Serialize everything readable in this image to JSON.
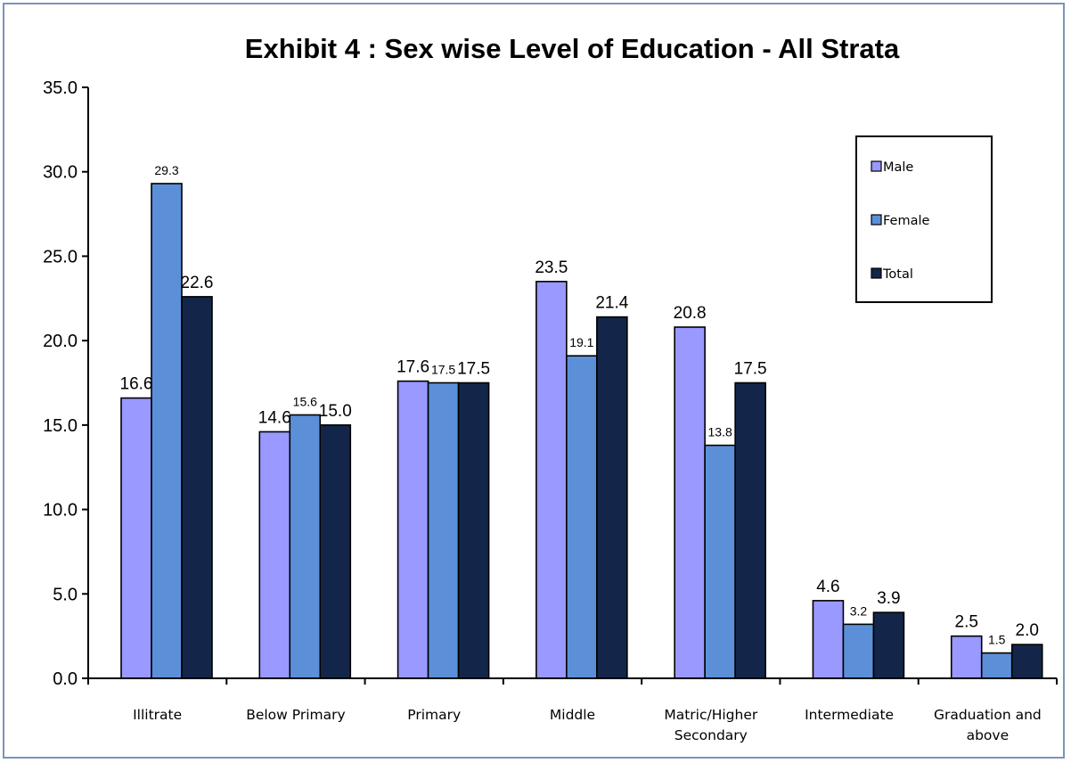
{
  "chart_data": {
    "type": "bar",
    "title": "Exhibit 4 : Sex wise Level of Education  - All Strata",
    "xlabel": "",
    "ylabel": "",
    "ylim": [
      0,
      35
    ],
    "yticks": [
      "0.0",
      "5.0",
      "10.0",
      "15.0",
      "20.0",
      "25.0",
      "30.0",
      "35.0"
    ],
    "categories": [
      [
        "Illitrate"
      ],
      [
        "Below Primary"
      ],
      [
        "Primary"
      ],
      [
        "Middle"
      ],
      [
        "Matric/Higher",
        "Secondary"
      ],
      [
        "Intermediate"
      ],
      [
        "Graduation and",
        "above"
      ]
    ],
    "series": [
      {
        "name": "Male",
        "color": "#9999ff",
        "values": [
          16.6,
          14.6,
          17.6,
          23.5,
          20.8,
          4.6,
          2.5
        ],
        "labels": [
          "16.6",
          "14.6",
          "17.6",
          "23.5",
          "20.8",
          "4.6",
          "2.5"
        ]
      },
      {
        "name": "Female",
        "color": "#5b90d8",
        "values": [
          29.3,
          15.6,
          17.5,
          19.1,
          13.8,
          3.2,
          1.5
        ],
        "labels": [
          "29.3",
          "15.6",
          "17.5",
          "19.1",
          "13.8",
          "3.2",
          "1.5"
        ]
      },
      {
        "name": "Total",
        "color": "#13264a",
        "values": [
          22.6,
          15.0,
          17.5,
          21.4,
          17.5,
          3.9,
          2.0
        ],
        "labels": [
          "22.6",
          "15.0",
          "17.5",
          "21.4",
          "17.5",
          "3.9",
          "2.0"
        ]
      }
    ],
    "grid": false,
    "legend": "top-right"
  }
}
